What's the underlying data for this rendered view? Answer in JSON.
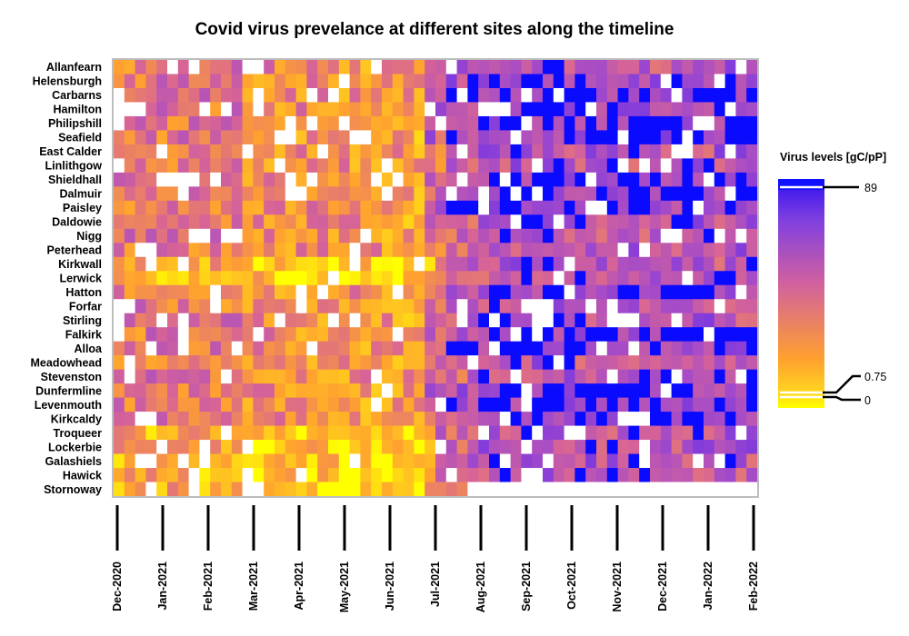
{
  "chart_data": {
    "type": "heatmap",
    "title": "Covid virus prevelance at different sites along the timeline",
    "sites": [
      "Allanfearn",
      "Helensburgh",
      "Carbarns",
      "Hamilton",
      "Philipshill",
      "Seafield",
      "East Calder",
      "Linlithgow",
      "Shieldhall",
      "Dalmuir",
      "Paisley",
      "Daldowie",
      "Nigg",
      "Peterhead",
      "Kirkwall",
      "Lerwick",
      "Hatton",
      "Forfar",
      "Stirling",
      "Falkirk",
      "Alloa",
      "Meadowhead",
      "Stevenston",
      "Dunfermline",
      "Levenmouth",
      "Kirkcaldy",
      "Troqueer",
      "Lockerbie",
      "Galashiels",
      "Hawick",
      "Stornoway"
    ],
    "months": [
      "Dec-2020",
      "Jan-2021",
      "Feb-2021",
      "Mar-2021",
      "Apr-2021",
      "May-2021",
      "Jun-2021",
      "Jul-2021",
      "Aug-2021",
      "Sep-2021",
      "Oct-2021",
      "Nov-2021",
      "Dec-2021",
      "Jan-2022",
      "Feb-2022"
    ],
    "weeks": 60,
    "legend": {
      "title": "Virus levels [gC/pP]",
      "ticks": [
        "89",
        "0.75",
        "0"
      ],
      "colors": [
        "#ffff00",
        "#ff9f30",
        "#d060a0",
        "#8040e0",
        "#0000ff"
      ]
    },
    "missing_color": "#ffffff"
  }
}
